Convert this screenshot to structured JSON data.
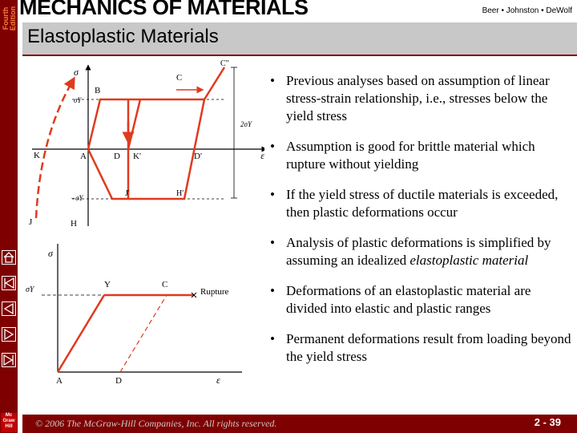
{
  "header": {
    "edition": "Fourth Edition",
    "title": "MECHANICS OF MATERIALS",
    "authors": "Beer  •  Johnston  •  DeWolf"
  },
  "slide": {
    "subtitle": "Elastoplastic Materials",
    "bullet_char": "•",
    "bullets": [
      "Previous analyses based on assumption of linear stress-strain relationship, i.e., stresses below the yield stress",
      "Assumption is good for brittle material which rupture without yielding",
      "If the yield stress of ductile materials is exceeded, then plastic deformations occur",
      "Analysis of plastic deformations is simplified by assuming an idealized ",
      "Deformations of an elastoplastic material are divided into elastic and plastic ranges",
      "Permanent deformations result from loading beyond the yield stress"
    ],
    "bullet4_italic": "elastoplastic material"
  },
  "figure_top": {
    "labels": {
      "sigma": "σ",
      "sigma_y": "σY",
      "neg_sigma_y": "−σY",
      "two_sigma_y": "2σY",
      "epsilon": "ε",
      "B": "B",
      "C": "C",
      "C2": "C''",
      "K": "K",
      "A": "A",
      "D": "D",
      "K2": "K'",
      "D2": "D'",
      "J": "J",
      "H": "H",
      "J2": "J'",
      "H2": "H'"
    }
  },
  "figure_bottom": {
    "labels": {
      "sigma": "σ",
      "sigma_y": "σY",
      "Y": "Y",
      "C": "C",
      "rupture": "Rupture",
      "A": "A",
      "D": "D",
      "epsilon": "ε"
    }
  },
  "footer": {
    "copyright": "© 2006 The McGraw-Hill Companies, Inc. All rights reserved.",
    "page": "2 - 39",
    "logo": "Mc Graw Hill"
  },
  "colors": {
    "brand_red": "#7f0000",
    "edition_orange": "#ff7f3f",
    "plot_red": "#e03a1e",
    "title_gray": "#c8c8c8"
  }
}
